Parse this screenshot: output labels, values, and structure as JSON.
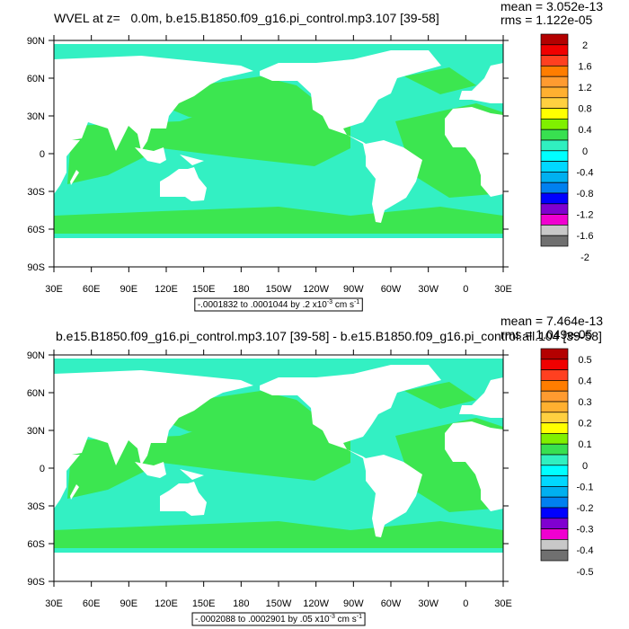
{
  "panels": [
    {
      "title": "WVEL at z=   0.0m, b.e15.B1850.f09_g16.pi_control.mp3.107 [39-58]",
      "mean": "mean = 3.052e-13",
      "rms": "rms = 1.122e-05",
      "lat_labels": [
        "90N",
        "60N",
        "30N",
        "0",
        "30S",
        "60S",
        "90S"
      ],
      "lon_labels": [
        "30E",
        "60E",
        "90E",
        "120E",
        "150E",
        "180",
        "150W",
        "120W",
        "90W",
        "60W",
        "30W",
        "0",
        "30E"
      ],
      "colorbar_labels": [
        "2",
        "1.6",
        "1.2",
        "0.8",
        "0.4",
        "0",
        "-0.4",
        "-0.8",
        "-1.2",
        "-1.6",
        "-2"
      ],
      "range": {
        "text": "-.0001832 to .0001044 by .2 x10",
        "exponent": "-3",
        "unit": " cm s",
        "unit_exponent": "-1"
      }
    },
    {
      "title": "b.e15.B1850.f09_g16.pi_control.mp3.107 [39-58] - b.e15.B1850.f09_g16.pi_control.all.104 [39-58]",
      "mean": "mean = 7.464e-13",
      "rms": "rms = 1.049e-05",
      "lat_labels": [
        "90N",
        "60N",
        "30N",
        "0",
        "30S",
        "60S",
        "90S"
      ],
      "lon_labels": [
        "30E",
        "60E",
        "90E",
        "120E",
        "150E",
        "180",
        "150W",
        "120W",
        "90W",
        "60W",
        "30W",
        "0",
        "30E"
      ],
      "colorbar_labels": [
        "0.5",
        "0.4",
        "0.3",
        "0.2",
        "0.1",
        "0",
        "-0.1",
        "-0.2",
        "-0.3",
        "-0.4",
        "-0.5"
      ],
      "range": {
        "text": "-.0002088 to .0002901 by .05 x10",
        "exponent": "-3",
        "unit": " cm s",
        "unit_exponent": "-1"
      }
    }
  ],
  "colorbar_colors": [
    "#b40000",
    "#f00000",
    "#ff4020",
    "#ff7d00",
    "#ff9b30",
    "#ffb030",
    "#ffd040",
    "#ffff00",
    "#80f000",
    "#38e050",
    "#30f0c0",
    "#00ffff",
    "#00d8ff",
    "#00b0f0",
    "#0080f0",
    "#0000ff",
    "#8000d0",
    "#f000d0",
    "#c8c8c8",
    "#707070"
  ]
}
